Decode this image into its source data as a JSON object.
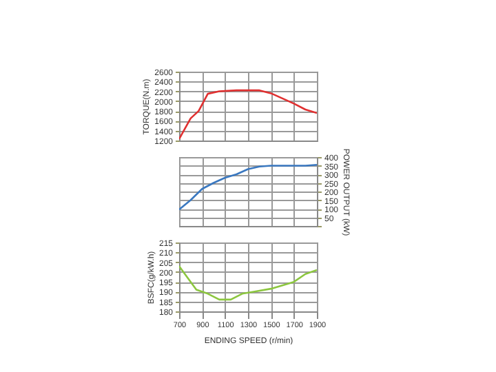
{
  "chart_data": [
    {
      "type": "line",
      "ylabel": "TORQUE(N.m)",
      "xlim": [
        700,
        1900
      ],
      "xticks": [
        700,
        900,
        1100,
        1300,
        1500,
        1700,
        1900
      ],
      "ylim": [
        1200,
        2600
      ],
      "yticks": [
        1200,
        1400,
        1600,
        1800,
        2000,
        2200,
        2400,
        2600
      ],
      "grid": true,
      "tick_labels": "y",
      "series": [
        {
          "color": "#e03030",
          "x": [
            700,
            800,
            870,
            950,
            1050,
            1200,
            1400,
            1500,
            1700,
            1800,
            1900
          ],
          "values": [
            1230,
            1650,
            1800,
            2150,
            2200,
            2220,
            2220,
            2160,
            1950,
            1830,
            1760
          ]
        }
      ]
    },
    {
      "type": "line",
      "y2label": "POWER OUTPUT (kW)",
      "xlim": [
        700,
        1900
      ],
      "xticks": [
        700,
        900,
        1100,
        1300,
        1500,
        1700,
        1900
      ],
      "y2lim": [
        0,
        400
      ],
      "y2ticks": [
        {
          "value": 0,
          "label": null
        },
        50,
        100,
        150,
        200,
        250,
        300,
        350,
        400
      ],
      "grid": true,
      "tick_labels": "y",
      "series": [
        {
          "color": "#3a78c0",
          "axis": "y2",
          "x": [
            700,
            800,
            900,
            1000,
            1100,
            1200,
            1300,
            1400,
            1500,
            1700,
            1800,
            1900
          ],
          "values": [
            95,
            150,
            215,
            250,
            280,
            300,
            330,
            345,
            350,
            350,
            350,
            355
          ]
        }
      ]
    },
    {
      "type": "line",
      "ylabel": "BSFC(g/kW.h)",
      "xlabel": "ENDING SPEED (r/min)",
      "xlim": [
        700,
        1900
      ],
      "xticks": [
        700,
        900,
        1100,
        1300,
        1500,
        1700,
        1900
      ],
      "ylim": [
        180,
        215
      ],
      "yticks": [
        180,
        185,
        190,
        195,
        200,
        205,
        210,
        215
      ],
      "grid": true,
      "series": [
        {
          "color": "#8cc63f",
          "x": [
            700,
            750,
            850,
            950,
            1050,
            1150,
            1250,
            1350,
            1500,
            1700,
            1800,
            1900
          ],
          "values": [
            203,
            199,
            191,
            189,
            186,
            186,
            189,
            190,
            191.5,
            195,
            199,
            201
          ]
        }
      ]
    }
  ]
}
